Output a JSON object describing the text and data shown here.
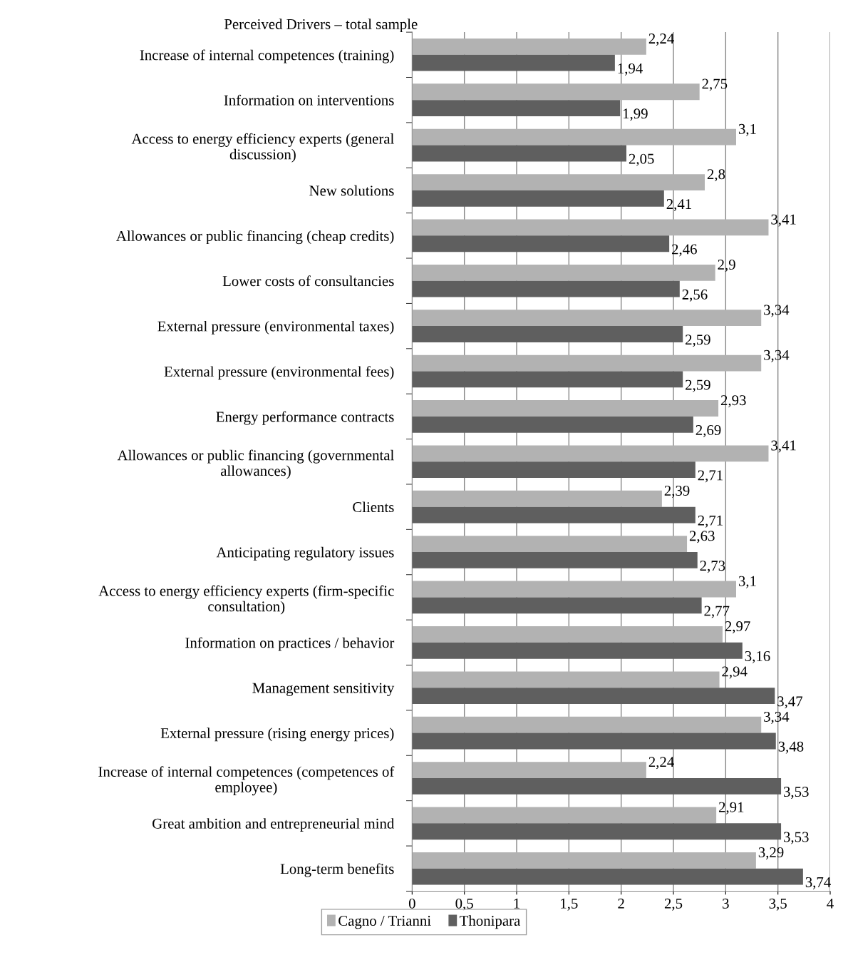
{
  "chart_data": {
    "type": "bar",
    "orientation": "horizontal",
    "title": "Perceived Drivers – total sample",
    "categories": [
      "Increase of internal competences (training)",
      "Information on interventions",
      "Access to energy efficiency experts (general\ndiscussion)",
      "New solutions",
      "Allowances or public financing (cheap credits)",
      "Lower costs of consultancies",
      "External pressure (environmental taxes)",
      "External pressure (environmental fees)",
      "Energy performance contracts",
      "Allowances or public financing (governmental\nallowances)",
      "Clients",
      "Anticipating regulatory issues",
      "Access to energy efficiency experts (firm-specific\nconsultation)",
      "Information on practices / behavior",
      "Management sensitivity",
      "External pressure (rising energy prices)",
      "Increase of internal competences (competences of\nemployee)",
      "Great ambition and entrepreneurial mind",
      "Long-term benefits"
    ],
    "series": [
      {
        "name": "Cagno / Trianni",
        "color": "#b2b2b2",
        "values": [
          2.24,
          2.75,
          3.1,
          2.8,
          3.41,
          2.9,
          3.34,
          3.34,
          2.93,
          3.41,
          2.39,
          2.63,
          3.1,
          2.97,
          2.94,
          3.34,
          2.24,
          2.91,
          3.29
        ],
        "value_labels": [
          "2,24",
          "2,75",
          "3,1",
          "2,8",
          "3,41",
          "2,9",
          "3,34",
          "3,34",
          "2,93",
          "3,41",
          "2,39",
          "2,63",
          "3,1",
          "2,97",
          "2,94",
          "3,34",
          "2,24",
          "2,91",
          "3,29"
        ]
      },
      {
        "name": "Thonipara",
        "color": "#5f5f5f",
        "values": [
          1.94,
          1.99,
          2.05,
          2.41,
          2.46,
          2.56,
          2.59,
          2.59,
          2.69,
          2.71,
          2.71,
          2.73,
          2.77,
          3.16,
          3.47,
          3.48,
          3.53,
          3.53,
          3.74
        ],
        "value_labels": [
          "1,94",
          "1,99",
          "2,05",
          "2,41",
          "2,46",
          "2,56",
          "2,59",
          "2,59",
          "2,69",
          "2,71",
          "2,71",
          "2,73",
          "2,77",
          "3,16",
          "3,47",
          "3,48",
          "3,53",
          "3,53",
          "3,74"
        ]
      }
    ],
    "xlim": [
      0,
      4
    ],
    "xticks": [
      0,
      {
        "value": 0.5,
        "label": "0,5"
      },
      1,
      {
        "value": 1.5,
        "label": "1,5"
      },
      2,
      {
        "value": 2.5,
        "label": "2,5"
      },
      3,
      {
        "value": 3.5,
        "label": "3,5"
      },
      4
    ],
    "grid": "x",
    "legend": "bottom"
  }
}
